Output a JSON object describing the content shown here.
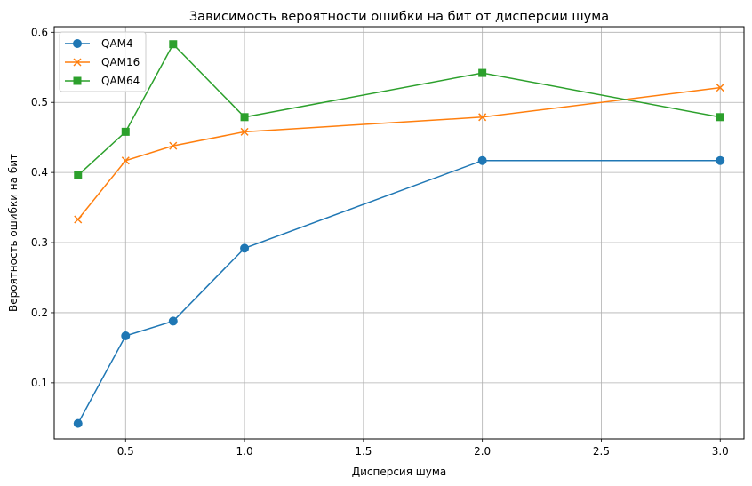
{
  "chart_data": {
    "type": "line",
    "title": "Зависимость вероятности ошибки на бит от дисперсии шума",
    "xlabel": "Дисперсия шума",
    "ylabel": "Вероятность ошибки на бит",
    "xlim": [
      0.2,
      3.1
    ],
    "ylim": [
      0.02,
      0.608
    ],
    "xticks": [
      0.5,
      1.0,
      1.5,
      2.0,
      2.5,
      3.0
    ],
    "xtick_labels": [
      "0.5",
      "1.0",
      "1.5",
      "2.0",
      "2.5",
      "3.0"
    ],
    "yticks": [
      0.1,
      0.2,
      0.3,
      0.4,
      0.5,
      0.6
    ],
    "ytick_labels": [
      "0.1",
      "0.2",
      "0.3",
      "0.4",
      "0.5",
      "0.6"
    ],
    "grid": true,
    "legend_position": "top-left",
    "x": [
      0.3,
      0.5,
      0.7,
      1.0,
      2.0,
      3.0
    ],
    "series": [
      {
        "name": "QAM4",
        "marker": "circle",
        "color": "#1f77b4",
        "values": [
          0.042,
          0.167,
          0.188,
          0.292,
          0.417,
          0.417
        ]
      },
      {
        "name": "QAM16",
        "marker": "x",
        "color": "#ff7f0e",
        "values": [
          0.333,
          0.417,
          0.438,
          0.458,
          0.479,
          0.521
        ]
      },
      {
        "name": "QAM64",
        "marker": "square",
        "color": "#2ca02c",
        "values": [
          0.396,
          0.458,
          0.583,
          0.479,
          0.542,
          0.479
        ]
      }
    ]
  }
}
